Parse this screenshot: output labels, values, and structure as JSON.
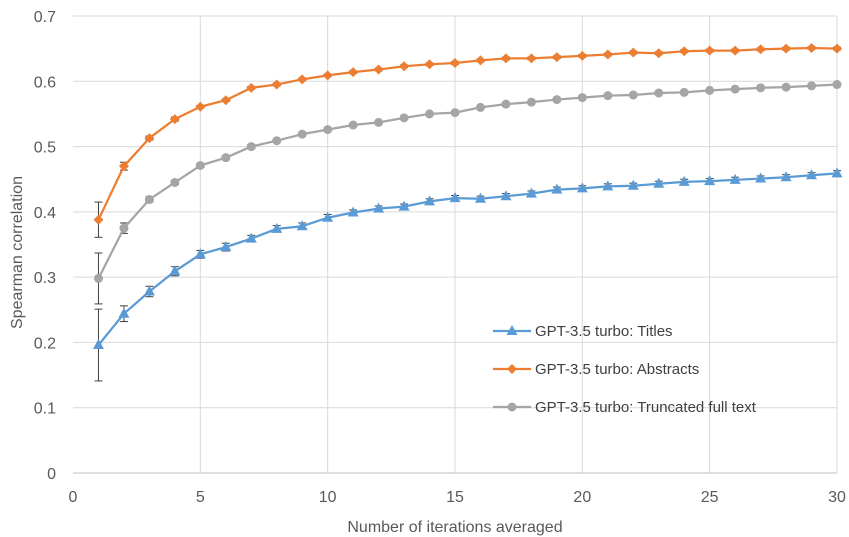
{
  "chart_data": {
    "type": "line",
    "title": "",
    "xlabel": "Number of iterations averaged",
    "ylabel": "Spearman correlation",
    "xlim": [
      0,
      30
    ],
    "ylim": [
      0,
      0.7
    ],
    "x_ticks": [
      "0",
      "5",
      "10",
      "15",
      "20",
      "25",
      "30"
    ],
    "y_ticks": [
      "0",
      "0.1",
      "0.2",
      "0.3",
      "0.4",
      "0.5",
      "0.6",
      "0.7"
    ],
    "grid": true,
    "legend_position": "bottom-right",
    "x": [
      1,
      2,
      3,
      4,
      5,
      6,
      7,
      8,
      9,
      10,
      11,
      12,
      13,
      14,
      15,
      16,
      17,
      18,
      19,
      20,
      21,
      22,
      23,
      24,
      25,
      26,
      27,
      28,
      29,
      30
    ],
    "series": [
      {
        "name": "GPT-3.5 turbo: Titles",
        "color": "#5b9bd5",
        "marker": "triangle",
        "values": [
          0.196,
          0.244,
          0.278,
          0.309,
          0.335,
          0.346,
          0.359,
          0.374,
          0.378,
          0.391,
          0.399,
          0.405,
          0.408,
          0.416,
          0.421,
          0.42,
          0.424,
          0.428,
          0.434,
          0.436,
          0.439,
          0.44,
          0.443,
          0.446,
          0.447,
          0.449,
          0.451,
          0.453,
          0.456,
          0.459
        ],
        "errors": [
          0.055,
          0.012,
          0.008,
          0.007,
          0.006,
          0.006,
          0.005,
          0.005,
          0.005,
          0.005,
          0.004,
          0.004,
          0.004,
          0.004,
          0.004,
          0.004,
          0.004,
          0.004,
          0.004,
          0.004,
          0.004,
          0.004,
          0.004,
          0.004,
          0.004,
          0.004,
          0.004,
          0.004,
          0.004,
          0.004
        ]
      },
      {
        "name": "GPT-3.5 turbo: Abstracts",
        "color": "#ed7d31",
        "marker": "diamond",
        "values": [
          0.388,
          0.47,
          0.513,
          0.542,
          0.561,
          0.571,
          0.59,
          0.595,
          0.603,
          0.609,
          0.614,
          0.618,
          0.623,
          0.626,
          0.628,
          0.632,
          0.635,
          0.635,
          0.637,
          0.639,
          0.641,
          0.644,
          0.643,
          0.646,
          0.647,
          0.647,
          0.649,
          0.65,
          0.651,
          0.65
        ],
        "errors": [
          0.027,
          0.006,
          0.003,
          0.003,
          0.002,
          0.002,
          0.002,
          0.002,
          0.002,
          0.002,
          0.002,
          0.002,
          0.002,
          0.002,
          0.002,
          0.002,
          0.002,
          0.002,
          0.002,
          0.002,
          0.002,
          0.002,
          0.002,
          0.002,
          0.002,
          0.002,
          0.002,
          0.002,
          0.002,
          0.002
        ]
      },
      {
        "name": "GPT-3.5 turbo: Truncated full text",
        "color": "#a5a5a5",
        "marker": "circle",
        "values": [
          0.298,
          0.375,
          0.419,
          0.445,
          0.471,
          0.483,
          0.5,
          0.509,
          0.519,
          0.526,
          0.533,
          0.537,
          0.544,
          0.55,
          0.552,
          0.56,
          0.565,
          0.568,
          0.572,
          0.575,
          0.578,
          0.579,
          0.582,
          0.583,
          0.586,
          0.588,
          0.59,
          0.591,
          0.593,
          0.595
        ],
        "errors": [
          0.039,
          0.008,
          0.004,
          0.003,
          0.003,
          0.003,
          0.003,
          0.002,
          0.002,
          0.002,
          0.002,
          0.002,
          0.002,
          0.002,
          0.002,
          0.002,
          0.002,
          0.002,
          0.002,
          0.002,
          0.002,
          0.002,
          0.002,
          0.002,
          0.002,
          0.002,
          0.002,
          0.002,
          0.002,
          0.002
        ]
      }
    ]
  }
}
